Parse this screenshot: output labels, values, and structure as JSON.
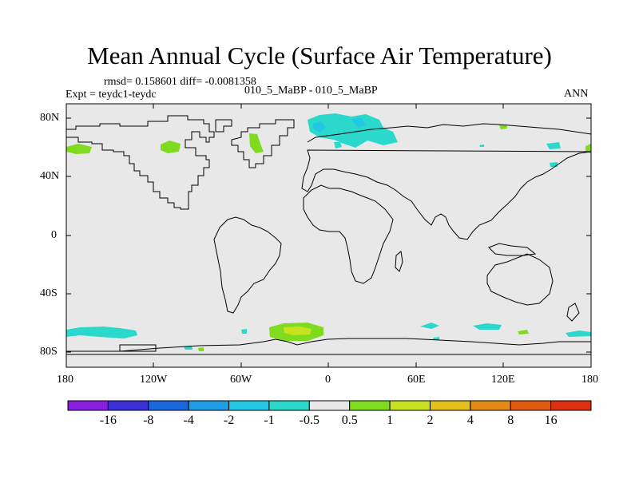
{
  "title": "Mean Annual Cycle (Surface Air Temperature)",
  "stats": "rmsd= 0.158601 diff= -0.0081358",
  "expt": "Expt = teydc1-teydc",
  "case": "010_5_MaBP - 010_5_MaBP",
  "season": "ANN",
  "lat_ticks": [
    "80N",
    "40N",
    "0",
    "40S",
    "80S"
  ],
  "lon_ticks": [
    "180",
    "120W",
    "60W",
    "0",
    "60E",
    "120E",
    "180"
  ],
  "colorbar": {
    "labels": [
      "-16",
      "-8",
      "-4",
      "-2",
      "-1",
      "-0.5",
      "0.5",
      "1",
      "2",
      "4",
      "8",
      "16"
    ],
    "colors": [
      "#8a1ee0",
      "#3c2fd6",
      "#1966dd",
      "#1f9ee6",
      "#22c7e4",
      "#2ad9cc",
      "#e8e8e8",
      "#7fdb1e",
      "#c7e21f",
      "#e2bf1b",
      "#e28a14",
      "#e05a10",
      "#dd3010"
    ]
  },
  "colors": {
    "land_ocean_bg": "#e8e8e8"
  }
}
